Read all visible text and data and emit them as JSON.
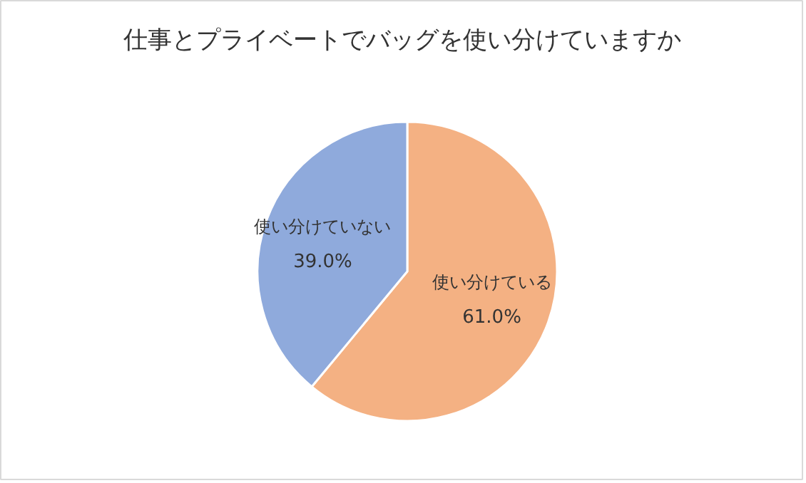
{
  "chart_data": {
    "type": "pie",
    "title": "仕事とプライベートでバッグを使い分けていますか",
    "categories": [
      "使い分けている",
      "使い分けていない"
    ],
    "values": [
      61.0,
      39.0
    ],
    "colors": [
      "#f4b183",
      "#8faadc"
    ],
    "value_labels": [
      "61.0%",
      "39.0%"
    ]
  }
}
